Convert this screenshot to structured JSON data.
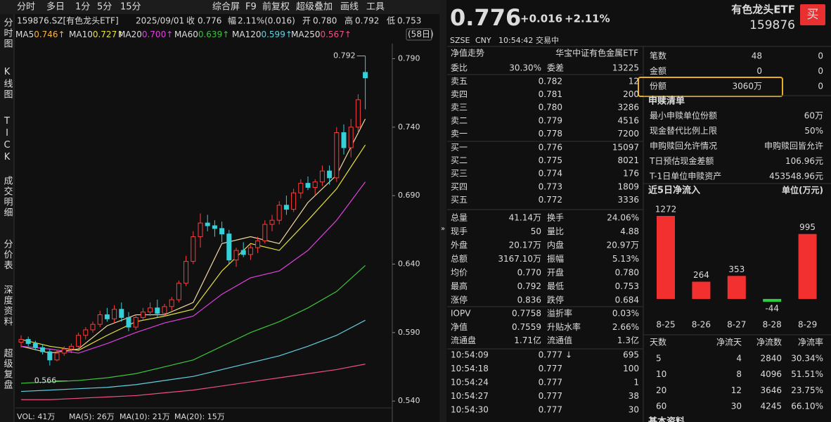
{
  "toolbar": {
    "tabs": [
      "分时",
      "多日",
      "1分",
      "5分",
      "15分"
    ],
    "tools": [
      "综合屏",
      "F9",
      "前复权",
      "超级叠加",
      "画线",
      "工具"
    ]
  },
  "side_tabs": [
    "分时图",
    "K线图",
    "TICK",
    "成交明细",
    "分价表",
    "深度资料",
    "超级复盘"
  ],
  "info_bar": {
    "texts": [
      "159876.SZ[有色龙头ETF]",
      "2025/09/01",
      "收",
      "0.776",
      "幅",
      "2.11%(0.016)",
      "开",
      "0.780",
      "高",
      "0.792",
      "低",
      "0.753"
    ],
    "colors": [
      "#ddd",
      "#ddd",
      "#ddd",
      "#ff3b3b",
      "#ddd",
      "#ff3b3b",
      "#ddd",
      "#ff3b3b",
      "#ddd",
      "#ff3b3b",
      "#ddd",
      "#2ecc40"
    ]
  },
  "ma_legend": [
    {
      "name": "MA5",
      "value": "0.746↑",
      "color": "#f5b342"
    },
    {
      "name": "MA10",
      "value": "0.727↑",
      "color": "#e8e23c"
    },
    {
      "name": "MA20",
      "value": "0.700↑",
      "color": "#e040e0"
    },
    {
      "name": "MA60",
      "value": "0.639↑",
      "color": "#3cc43c"
    },
    {
      "name": "MA120",
      "value": "0.599↑",
      "color": "#60d0e0"
    },
    {
      "name": "MA250",
      "value": "0.567↑",
      "color": "#f05080"
    }
  ],
  "period": "(58日)",
  "volume_legend": [
    "VOL: 41万",
    "MA(5): 26万",
    "MA(10): 21万",
    "MA(20): 15万"
  ],
  "chart_data": [
    {
      "type": "candlestick",
      "up_color": "#ff3b3b",
      "down_color": "#35d0d8",
      "ylim": [
        0.536,
        0.801
      ],
      "yticks": [
        {
          "value": 0.54,
          "label": "0.540"
        },
        {
          "value": 0.59,
          "label": "0.590"
        },
        {
          "value": 0.64,
          "label": "0.640"
        },
        {
          "value": 0.69,
          "label": "0.690"
        },
        {
          "value": 0.74,
          "label": "0.740"
        },
        {
          "value": 0.79,
          "label": "0.790"
        }
      ],
      "candles": [
        [
          0.583,
          0.588,
          0.579,
          0.585
        ],
        [
          0.585,
          0.587,
          0.58,
          0.582
        ],
        [
          0.582,
          0.584,
          0.577,
          0.579
        ],
        [
          0.579,
          0.581,
          0.574,
          0.576
        ],
        [
          0.576,
          0.578,
          0.566,
          0.57
        ],
        [
          0.57,
          0.577,
          0.569,
          0.575
        ],
        [
          0.575,
          0.58,
          0.573,
          0.578
        ],
        [
          0.578,
          0.582,
          0.575,
          0.58
        ],
        [
          0.58,
          0.59,
          0.579,
          0.588
        ],
        [
          0.588,
          0.594,
          0.585,
          0.592
        ],
        [
          0.592,
          0.598,
          0.59,
          0.596
        ],
        [
          0.596,
          0.606,
          0.594,
          0.603
        ],
        [
          0.603,
          0.608,
          0.598,
          0.6
        ],
        [
          0.6,
          0.61,
          0.597,
          0.607
        ],
        [
          0.607,
          0.612,
          0.598,
          0.601
        ],
        [
          0.601,
          0.605,
          0.591,
          0.594
        ],
        [
          0.594,
          0.603,
          0.592,
          0.601
        ],
        [
          0.601,
          0.608,
          0.599,
          0.605
        ],
        [
          0.605,
          0.612,
          0.602,
          0.608
        ],
        [
          0.608,
          0.614,
          0.601,
          0.604
        ],
        [
          0.604,
          0.611,
          0.602,
          0.609
        ],
        [
          0.609,
          0.616,
          0.606,
          0.614
        ],
        [
          0.614,
          0.628,
          0.612,
          0.626
        ],
        [
          0.626,
          0.646,
          0.624,
          0.642
        ],
        [
          0.642,
          0.664,
          0.64,
          0.66
        ],
        [
          0.66,
          0.677,
          0.652,
          0.67
        ],
        [
          0.67,
          0.676,
          0.664,
          0.668
        ],
        [
          0.668,
          0.672,
          0.66,
          0.666
        ],
        [
          0.666,
          0.671,
          0.656,
          0.662
        ],
        [
          0.662,
          0.665,
          0.64,
          0.643
        ],
        [
          0.643,
          0.652,
          0.638,
          0.65
        ],
        [
          0.65,
          0.656,
          0.645,
          0.647
        ],
        [
          0.647,
          0.654,
          0.643,
          0.652
        ],
        [
          0.652,
          0.66,
          0.648,
          0.657
        ],
        [
          0.657,
          0.672,
          0.655,
          0.669
        ],
        [
          0.669,
          0.676,
          0.664,
          0.672
        ],
        [
          0.672,
          0.686,
          0.669,
          0.683
        ],
        [
          0.683,
          0.69,
          0.676,
          0.68
        ],
        [
          0.68,
          0.695,
          0.678,
          0.692
        ],
        [
          0.692,
          0.702,
          0.688,
          0.699
        ],
        [
          0.699,
          0.704,
          0.694,
          0.696
        ],
        [
          0.696,
          0.702,
          0.69,
          0.7
        ],
        [
          0.7,
          0.712,
          0.697,
          0.708
        ],
        [
          0.708,
          0.712,
          0.698,
          0.703
        ],
        [
          0.703,
          0.74,
          0.7,
          0.736
        ],
        [
          0.736,
          0.742,
          0.72,
          0.725
        ],
        [
          0.725,
          0.746,
          0.718,
          0.74
        ],
        [
          0.74,
          0.764,
          0.736,
          0.76
        ],
        [
          0.78,
          0.792,
          0.753,
          0.776
        ]
      ],
      "series": [
        {
          "name": "MA5",
          "color": "#f5d9a0",
          "x": [
            0,
            4,
            8,
            12,
            16,
            20,
            24,
            28,
            32,
            36,
            40,
            44,
            48
          ],
          "values": [
            0.58,
            0.575,
            0.578,
            0.595,
            0.603,
            0.603,
            0.612,
            0.655,
            0.66,
            0.655,
            0.685,
            0.705,
            0.746
          ]
        },
        {
          "name": "MA10",
          "color": "#e8e23c",
          "x": [
            0,
            4,
            8,
            12,
            16,
            20,
            24,
            28,
            32,
            36,
            40,
            44,
            48
          ],
          "values": [
            0.585,
            0.58,
            0.577,
            0.588,
            0.598,
            0.602,
            0.607,
            0.635,
            0.655,
            0.65,
            0.672,
            0.695,
            0.727
          ]
        },
        {
          "name": "MA20",
          "color": "#e040e0",
          "x": [
            0,
            4,
            8,
            12,
            16,
            20,
            24,
            28,
            32,
            36,
            40,
            44,
            48
          ],
          "values": [
            0.58,
            0.578,
            0.575,
            0.582,
            0.59,
            0.597,
            0.602,
            0.618,
            0.63,
            0.635,
            0.65,
            0.672,
            0.7
          ]
        },
        {
          "name": "MA60",
          "color": "#3cc43c",
          "x": [
            0,
            4,
            8,
            12,
            16,
            20,
            24,
            28,
            32,
            36,
            40,
            44,
            48
          ],
          "values": [
            0.553,
            0.554,
            0.555,
            0.557,
            0.56,
            0.565,
            0.57,
            0.58,
            0.59,
            0.598,
            0.608,
            0.62,
            0.639
          ]
        },
        {
          "name": "MA120",
          "color": "#60d0e0",
          "x": [
            0,
            4,
            8,
            12,
            16,
            20,
            24,
            28,
            32,
            36,
            40,
            44,
            48
          ],
          "values": [
            0.547,
            0.548,
            0.549,
            0.55,
            0.552,
            0.555,
            0.558,
            0.563,
            0.568,
            0.573,
            0.58,
            0.588,
            0.599
          ]
        },
        {
          "name": "MA250",
          "color": "#f05080",
          "x": [
            0,
            4,
            8,
            12,
            16,
            20,
            24,
            28,
            32,
            36,
            40,
            44,
            48
          ],
          "values": [
            0.541,
            0.541,
            0.542,
            0.543,
            0.544,
            0.546,
            0.548,
            0.551,
            0.554,
            0.557,
            0.56,
            0.563,
            0.567
          ]
        }
      ],
      "annotations": [
        {
          "text": "0.792",
          "x": 48,
          "y": 0.792
        },
        {
          "text": "0.566",
          "x": 4,
          "y": 0.566
        }
      ]
    },
    {
      "type": "bar",
      "title": "近5日净流入",
      "unit": "单位(万元)",
      "categories": [
        "8-25",
        "8-26",
        "8-27",
        "8-28",
        "8-29"
      ],
      "values": [
        1272,
        264,
        353,
        -44,
        995
      ],
      "up_color": "#f23030",
      "down_color": "#2ecc40",
      "ylim": [
        -323,
        1509
      ]
    }
  ],
  "quote": {
    "price": "0.776",
    "change": "+0.016",
    "pct": "+2.11%",
    "name": "有色龙头ETF",
    "code": "159876",
    "buy": "买",
    "exchange": "SZSE",
    "currency": "CNY",
    "time": "10:54:42",
    "status": "交易中"
  },
  "nav": {
    "label": "净值走势",
    "index": "华宝中证有色金属ETF"
  },
  "ratio": [
    "委比",
    "30.30%",
    "委差",
    "13225"
  ],
  "asks": [
    [
      "卖五",
      "0.782",
      "12"
    ],
    [
      "卖四",
      "0.781",
      "200"
    ],
    [
      "卖三",
      "0.780",
      "3286"
    ],
    [
      "卖二",
      "0.779",
      "4516"
    ],
    [
      "卖一",
      "0.778",
      "7200"
    ]
  ],
  "bids": [
    [
      "买一",
      "0.776",
      "15097"
    ],
    [
      "买二",
      "0.775",
      "8021"
    ],
    [
      "买三",
      "0.774",
      "176"
    ],
    [
      "买四",
      "0.773",
      "1809"
    ],
    [
      "买五",
      "0.772",
      "3336"
    ]
  ],
  "stats": [
    [
      "总量",
      "41.14万",
      "换手",
      "24.06%"
    ],
    [
      "现手",
      "50",
      "量比",
      "4.88"
    ],
    [
      "外盘",
      "20.17万",
      "内盘",
      "20.97万"
    ],
    [
      "总额",
      "3167.10万",
      "振幅",
      "5.13%"
    ],
    [
      "均价",
      "0.770",
      "开盘",
      "0.780"
    ],
    [
      "最高",
      "0.792",
      "最低",
      "0.753"
    ],
    [
      "涨停",
      "0.836",
      "跌停",
      "0.684"
    ]
  ],
  "stats_colors": [
    [
      "#ddd",
      "#ddd"
    ],
    [
      "#ddd",
      "#ddd"
    ],
    [
      "#ff3b3b",
      "#2ecc40"
    ],
    [
      "#ddd",
      "#ddd"
    ],
    [
      "#ff3b3b",
      "#ff3b3b"
    ],
    [
      "#ff3b3b",
      "#2ecc40"
    ],
    [
      "#ff3b3b",
      "#2ecc40"
    ]
  ],
  "etf_stats": [
    [
      "IOPV",
      "0.7758",
      "溢折率",
      "0.03%"
    ],
    [
      "净值",
      "0.7559",
      "升贴水率",
      "2.66%"
    ],
    [
      "流通盘",
      "1.71亿",
      "流通值",
      "1.3亿"
    ]
  ],
  "etf_colors": [
    [
      "#ddd",
      "#ff3b3b"
    ],
    [
      "#ff3b3b",
      "#ff3b3b"
    ],
    [
      "#ddd",
      "#ddd"
    ]
  ],
  "trades": [
    [
      "10:54:09",
      "0.777",
      "↓",
      "695"
    ],
    [
      "10:54:18",
      "0.777",
      "",
      "100"
    ],
    [
      "10:54:24",
      "0.777",
      "",
      "1"
    ],
    [
      "10:54:27",
      "0.777",
      "",
      "38"
    ],
    [
      "10:54:30",
      "0.777",
      "",
      "30"
    ]
  ],
  "trade_colors": [
    "#2ecc40",
    "#ff3b3b",
    "#ff3b3b",
    "#ff3b3b",
    "#ff3b3b"
  ],
  "creation": [
    [
      "笔数",
      "48",
      "0"
    ],
    [
      "金额",
      "0",
      "0"
    ],
    [
      "份额",
      "3060万",
      "0"
    ]
  ],
  "subscription": {
    "title": "申赎清单",
    "rows": [
      [
        "最小申赎单位份额",
        "60万"
      ],
      [
        "现金替代比例上限",
        "50%"
      ],
      [
        "申购赎回允许情况",
        "申购赎回皆允许"
      ],
      [
        "T日预估现金差额",
        "106.96元"
      ],
      [
        "T-1日单位申赎资产",
        "453548.96元"
      ]
    ]
  },
  "flow_table": {
    "header": [
      "天数",
      "净流天",
      "净流数",
      "净流率"
    ],
    "rows": [
      [
        "5",
        "4",
        "2840",
        "30.34%"
      ],
      [
        "10",
        "8",
        "4096",
        "51.51%"
      ],
      [
        "20",
        "12",
        "3646",
        "23.75%"
      ],
      [
        "60",
        "30",
        "4245",
        "66.10%"
      ]
    ]
  },
  "basic_info": "基本资料"
}
